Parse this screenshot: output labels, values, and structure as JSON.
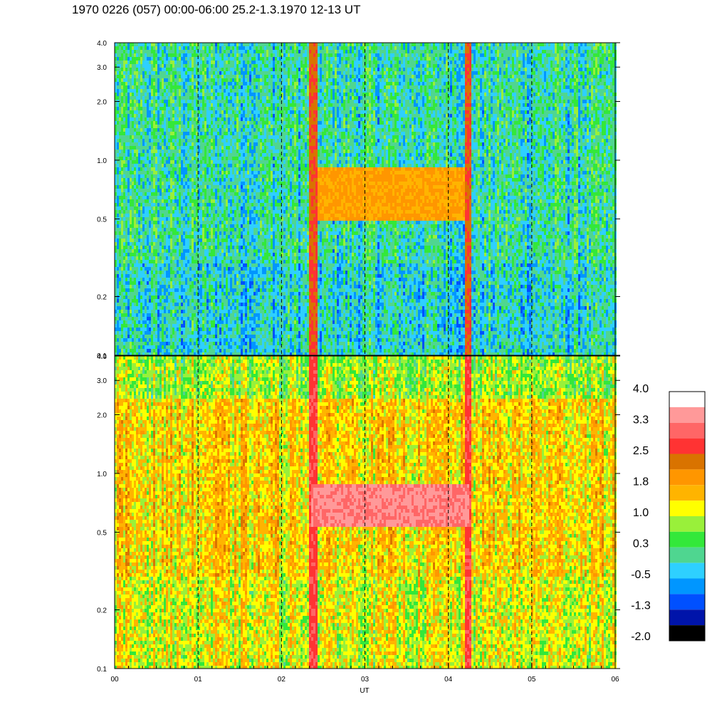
{
  "header": {
    "title": "1970 0226 (057) 00:00-06:00 25.2-1.3.1970  12-13 UT"
  },
  "chart_data": {
    "type": "heatmap",
    "title": "1970 0226 (057) 00:00-06:00 25.2-1.3.1970  12-13 UT",
    "xlabel": "UT",
    "ylabel": "",
    "x_range": [
      0,
      6
    ],
    "x_ticks": [
      "00",
      "01",
      "02",
      "03",
      "04",
      "05",
      "06"
    ],
    "x_tick_values": [
      0,
      1,
      2,
      3,
      4,
      5,
      6
    ],
    "y_scale": "log",
    "y_range": [
      0.1,
      4.0
    ],
    "y_ticks": [
      "0.1",
      "0.2",
      "0.5",
      "1.0",
      "2.0",
      "3.0",
      "4.0"
    ],
    "y_tick_values": [
      0.1,
      0.2,
      0.5,
      1.0,
      2.0,
      3.0,
      4.0
    ],
    "dashed_hour_lines": [
      1,
      2,
      3,
      4,
      5
    ],
    "panels": [
      {
        "position": "top",
        "base_level": 0.0,
        "features": [
          {
            "type": "enhanced_band",
            "x_start": 2.35,
            "x_end": 4.25,
            "y_low": 0.5,
            "y_high": 0.95,
            "level": 1.8
          },
          {
            "type": "vertical_spike",
            "x": 2.37,
            "level": 2.5
          },
          {
            "type": "vertical_spike",
            "x": 4.22,
            "level": 2.5
          }
        ]
      },
      {
        "position": "bottom",
        "base_level": 1.4,
        "features": [
          {
            "type": "enhanced_band",
            "x_start": 2.35,
            "x_end": 4.25,
            "y_low": 0.55,
            "y_high": 0.9,
            "level": 3.3
          },
          {
            "type": "vertical_spike",
            "x": 2.37,
            "level": 2.8
          },
          {
            "type": "vertical_spike",
            "x": 4.22,
            "level": 2.8
          }
        ]
      }
    ],
    "colorbar": {
      "labels": [
        "4.0",
        "3.3",
        "2.5",
        "1.8",
        "1.0",
        "0.3",
        "-0.5",
        "-1.3",
        "-2.0"
      ],
      "range": [
        -2.0,
        4.0
      ],
      "colors": [
        "#000000",
        "#0014aa",
        "#0050ff",
        "#0096ff",
        "#2ed0ff",
        "#4fd690",
        "#33e83a",
        "#99f03a",
        "#ffff00",
        "#ffb400",
        "#ff9600",
        "#d97300",
        "#ff3333",
        "#ff6666",
        "#ff9999",
        "#ffffff"
      ]
    }
  }
}
